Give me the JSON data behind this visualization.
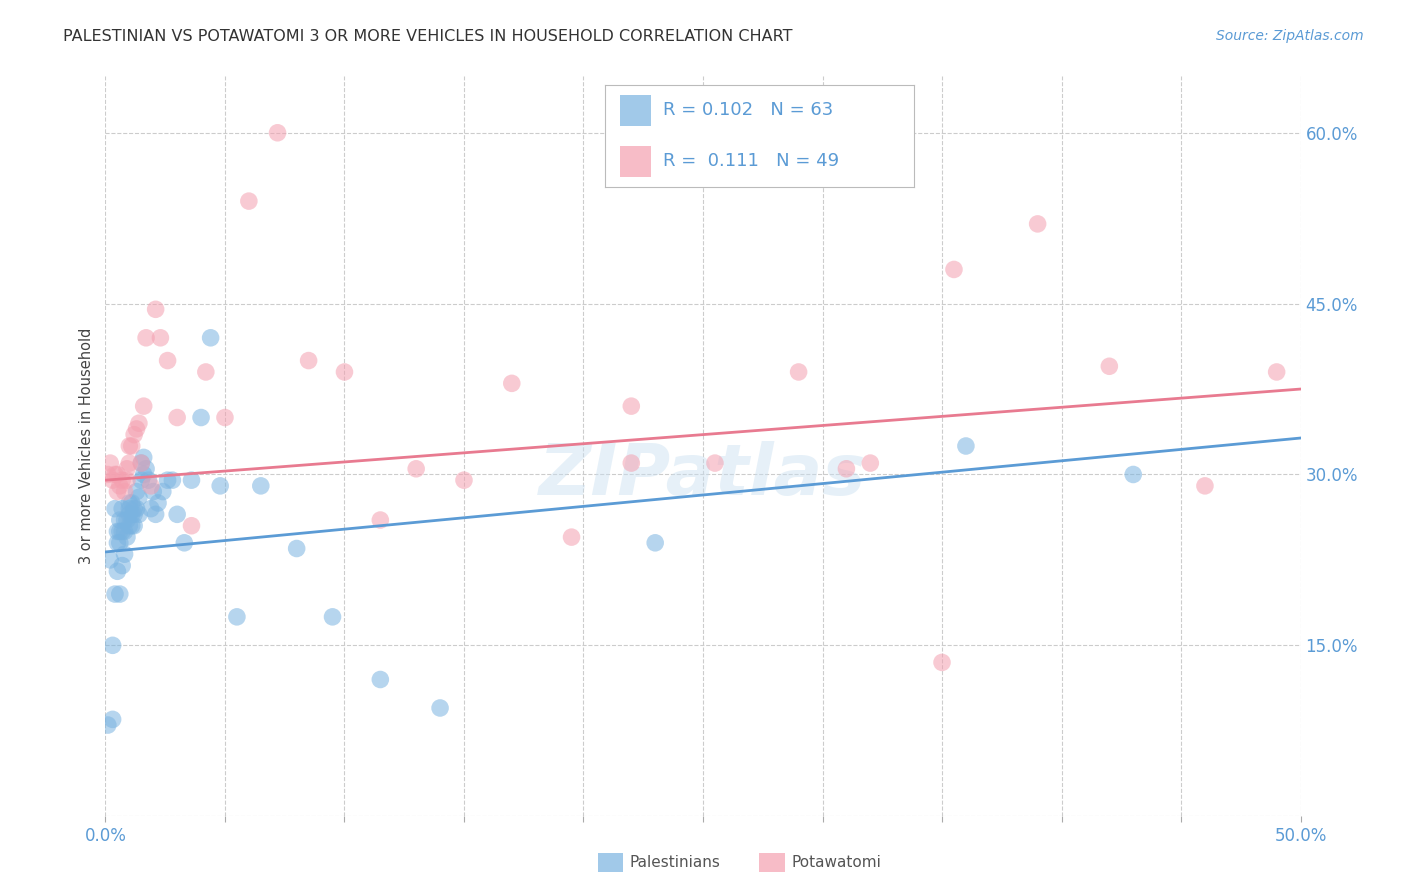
{
  "title": "PALESTINIAN VS POTAWATOMI 3 OR MORE VEHICLES IN HOUSEHOLD CORRELATION CHART",
  "source": "Source: ZipAtlas.com",
  "ylabel": "3 or more Vehicles in Household",
  "xmin": 0.0,
  "xmax": 0.5,
  "ymin": 0.0,
  "ymax": 0.65,
  "x_ticks": [
    0.0,
    0.05,
    0.1,
    0.15,
    0.2,
    0.25,
    0.3,
    0.35,
    0.4,
    0.45,
    0.5
  ],
  "x_tick_labels_show": [
    "0.0%",
    "",
    "",
    "",
    "",
    "",
    "",
    "",
    "",
    "",
    "50.0%"
  ],
  "y_ticks": [
    0.0,
    0.15,
    0.3,
    0.45,
    0.6
  ],
  "y_tick_labels": [
    "",
    "15.0%",
    "30.0%",
    "45.0%",
    "60.0%"
  ],
  "grid_color": "#cccccc",
  "background_color": "#ffffff",
  "palestinians_color": "#7ab3e0",
  "potawatomi_color": "#f4a0b0",
  "trend_blue": "#5b9bd5",
  "trend_pink": "#e87a90",
  "blue_trend_x": [
    0.0,
    0.5
  ],
  "blue_trend_y": [
    0.232,
    0.332
  ],
  "pink_trend_x": [
    0.0,
    0.5
  ],
  "pink_trend_y": [
    0.295,
    0.375
  ],
  "palestinians_x": [
    0.001,
    0.002,
    0.003,
    0.003,
    0.004,
    0.004,
    0.005,
    0.005,
    0.005,
    0.006,
    0.006,
    0.006,
    0.006,
    0.007,
    0.007,
    0.007,
    0.008,
    0.008,
    0.008,
    0.009,
    0.009,
    0.01,
    0.01,
    0.01,
    0.01,
    0.011,
    0.011,
    0.011,
    0.012,
    0.012,
    0.012,
    0.013,
    0.013,
    0.014,
    0.014,
    0.015,
    0.015,
    0.016,
    0.016,
    0.017,
    0.018,
    0.019,
    0.02,
    0.021,
    0.022,
    0.024,
    0.026,
    0.028,
    0.03,
    0.033,
    0.036,
    0.04,
    0.044,
    0.048,
    0.055,
    0.065,
    0.08,
    0.095,
    0.115,
    0.14,
    0.23,
    0.36,
    0.43
  ],
  "palestinians_y": [
    0.08,
    0.225,
    0.085,
    0.15,
    0.27,
    0.195,
    0.25,
    0.24,
    0.215,
    0.26,
    0.25,
    0.24,
    0.195,
    0.27,
    0.25,
    0.22,
    0.26,
    0.25,
    0.23,
    0.26,
    0.245,
    0.275,
    0.27,
    0.265,
    0.255,
    0.275,
    0.265,
    0.255,
    0.27,
    0.265,
    0.255,
    0.285,
    0.27,
    0.28,
    0.265,
    0.31,
    0.295,
    0.315,
    0.3,
    0.305,
    0.295,
    0.27,
    0.285,
    0.265,
    0.275,
    0.285,
    0.295,
    0.295,
    0.265,
    0.24,
    0.295,
    0.35,
    0.42,
    0.29,
    0.175,
    0.29,
    0.235,
    0.175,
    0.12,
    0.095,
    0.24,
    0.325,
    0.3
  ],
  "potawatomi_x": [
    0.001,
    0.002,
    0.003,
    0.004,
    0.005,
    0.005,
    0.006,
    0.007,
    0.008,
    0.009,
    0.009,
    0.01,
    0.01,
    0.011,
    0.012,
    0.013,
    0.014,
    0.015,
    0.016,
    0.017,
    0.019,
    0.021,
    0.023,
    0.026,
    0.03,
    0.036,
    0.042,
    0.05,
    0.06,
    0.072,
    0.085,
    0.1,
    0.115,
    0.13,
    0.15,
    0.17,
    0.195,
    0.22,
    0.255,
    0.29,
    0.32,
    0.355,
    0.39,
    0.42,
    0.46,
    0.49,
    0.22,
    0.31,
    0.35
  ],
  "potawatomi_y": [
    0.3,
    0.31,
    0.295,
    0.3,
    0.3,
    0.285,
    0.29,
    0.295,
    0.285,
    0.305,
    0.295,
    0.325,
    0.31,
    0.325,
    0.335,
    0.34,
    0.345,
    0.31,
    0.36,
    0.42,
    0.29,
    0.445,
    0.42,
    0.4,
    0.35,
    0.255,
    0.39,
    0.35,
    0.54,
    0.6,
    0.4,
    0.39,
    0.26,
    0.305,
    0.295,
    0.38,
    0.245,
    0.36,
    0.31,
    0.39,
    0.31,
    0.48,
    0.52,
    0.395,
    0.29,
    0.39,
    0.31,
    0.305,
    0.135
  ]
}
